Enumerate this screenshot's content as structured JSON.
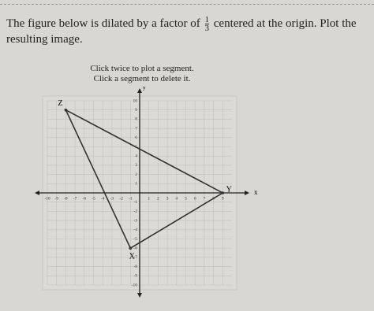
{
  "question": {
    "before": "The figure below is dilated by a factor of",
    "fraction": {
      "numerator": "1",
      "denominator": "3"
    },
    "after": "centered at the origin. Plot the resulting image."
  },
  "instructions": [
    "Click twice to plot a segment.",
    "Click a segment to delete it."
  ],
  "graph": {
    "xlim": [
      -10,
      10
    ],
    "ylim": [
      -10,
      10
    ],
    "xticks": [
      -10,
      -9,
      -8,
      -7,
      -6,
      -5,
      -4,
      -3,
      -2,
      -1,
      1,
      2,
      3,
      4,
      5,
      6,
      7,
      8,
      9
    ],
    "yticks": [
      10,
      9,
      8,
      7,
      6,
      5,
      4,
      3,
      2,
      1,
      -1,
      -2,
      -3,
      -4,
      -5,
      -6,
      -7,
      -8,
      -9,
      -10
    ],
    "x_axis_label": "x",
    "y_axis_label": "y",
    "points": [
      {
        "label": "Z",
        "x": -8,
        "y": 9
      },
      {
        "label": "Y",
        "x": 9,
        "y": 0
      },
      {
        "label": "X",
        "x": -1,
        "y": -6
      }
    ]
  }
}
